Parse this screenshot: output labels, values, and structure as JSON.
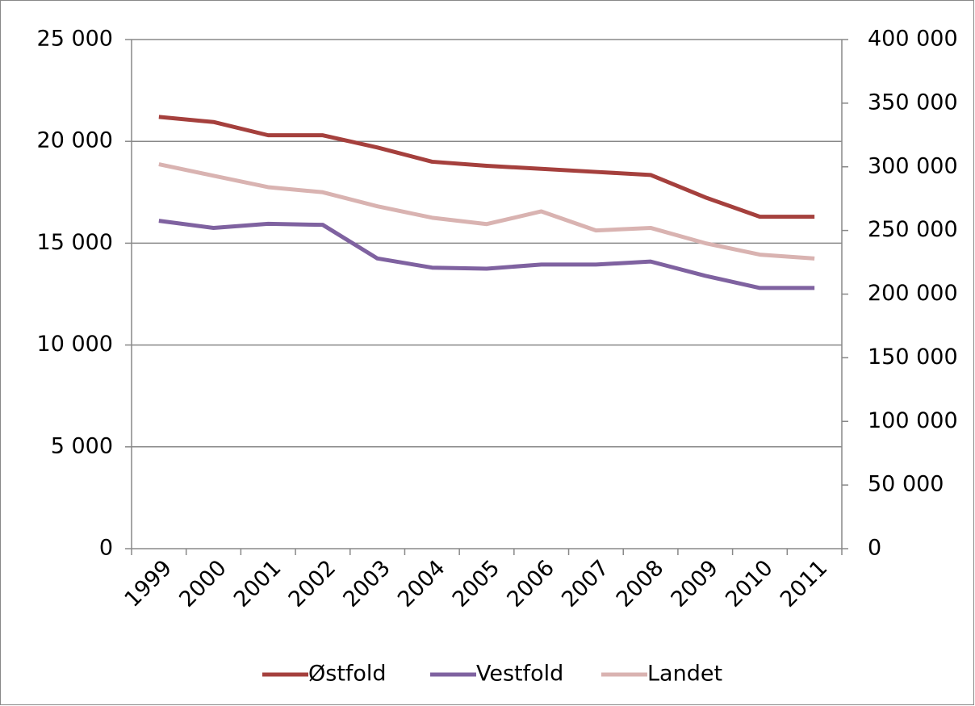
{
  "chart_data": {
    "type": "line",
    "categories": [
      "1999",
      "2000",
      "2001",
      "2002",
      "2003",
      "2004",
      "2005",
      "2006",
      "2007",
      "2008",
      "2009",
      "2010",
      "2011"
    ],
    "series": [
      {
        "name": "Østfold",
        "color": "#a5403d",
        "values": [
          21200,
          20950,
          20300,
          20300,
          19700,
          19000,
          18800,
          18650,
          18500,
          18350,
          17250,
          16300,
          16300
        ]
      },
      {
        "name": "Vestfold",
        "color": "#7f62a0",
        "values": [
          16100,
          15750,
          15950,
          15900,
          14250,
          13800,
          13750,
          13950,
          13950,
          14100,
          13400,
          12800,
          12800
        ]
      },
      {
        "name": "Landet",
        "color": "#d9b3b1",
        "axis": "y2",
        "values": [
          302000,
          293000,
          284000,
          280000,
          269000,
          260000,
          255000,
          265000,
          250000,
          252000,
          240000,
          231000,
          228000
        ]
      }
    ],
    "ylim": [
      0,
      25000
    ],
    "yticks": [
      0,
      {
        "value": 5000,
        "label": "5 000"
      },
      {
        "value": 10000,
        "label": "10 000"
      },
      {
        "value": 15000,
        "label": "15 000"
      },
      {
        "value": 20000,
        "label": "20 000"
      },
      {
        "value": 25000,
        "label": "25 000"
      }
    ],
    "y2lim": [
      0,
      400000
    ],
    "y2ticks": [
      0,
      {
        "value": 50000,
        "label": "50 000"
      },
      {
        "value": 100000,
        "label": "100 000"
      },
      {
        "value": 150000,
        "label": "150 000"
      },
      {
        "value": 200000,
        "label": "200 000"
      },
      {
        "value": 250000,
        "label": "250 000"
      },
      {
        "value": 300000,
        "label": "300 000"
      },
      {
        "value": 350000,
        "label": "350 000"
      },
      {
        "value": 400000,
        "label": "400 000"
      }
    ],
    "grid": true,
    "legend": "bottom"
  }
}
